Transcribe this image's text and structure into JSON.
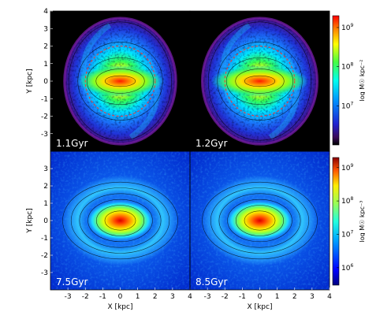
{
  "chart_data": [
    {
      "type": "heatmap",
      "panel": "top-left",
      "time_label": "1.1Gyr",
      "xlabel": "",
      "ylabel": "Y [kpc]",
      "xlim": [
        -4,
        4
      ],
      "ylim": [
        -4,
        4
      ],
      "x_ticks": [],
      "y_ticks": [
        -3,
        -2,
        -1,
        0,
        1,
        2,
        3,
        4
      ],
      "background": "black",
      "disk": {
        "radius_x": 3.2,
        "radius_y": 3.6,
        "tilt_deg": 0
      },
      "bar": {
        "half_length": 1.8,
        "half_width": 0.35
      },
      "dashed_circle_radius": 2.0,
      "contour_levels": 5
    },
    {
      "type": "heatmap",
      "panel": "top-right",
      "time_label": "1.2Gyr",
      "xlabel": "",
      "ylabel": "",
      "xlim": [
        -4,
        4
      ],
      "ylim": [
        -4,
        4
      ],
      "x_ticks": [],
      "y_ticks": [],
      "background": "black",
      "disk": {
        "radius_x": 3.3,
        "radius_y": 3.6,
        "tilt_deg": 0
      },
      "bar": {
        "half_length": 2.0,
        "half_width": 0.35
      },
      "dashed_circle_radius": 2.0,
      "contour_levels": 5
    },
    {
      "type": "heatmap",
      "panel": "bottom-left",
      "time_label": "7.5Gyr",
      "xlabel": "X [kpc]",
      "ylabel": "Y [kpc]",
      "xlim": [
        -4,
        4
      ],
      "ylim": [
        -4,
        4
      ],
      "x_ticks": [
        -3,
        -2,
        -1,
        0,
        1,
        2,
        3,
        4
      ],
      "y_ticks": [
        -3,
        -2,
        -1,
        0,
        1,
        2,
        3
      ],
      "background": "blue",
      "bar": {
        "half_length": 1.4,
        "half_width": 0.45
      },
      "contour_levels": 6
    },
    {
      "type": "heatmap",
      "panel": "bottom-right",
      "time_label": "8.5Gyr",
      "xlabel": "X [kpc]",
      "ylabel": "",
      "xlim": [
        -4,
        4
      ],
      "ylim": [
        -4,
        4
      ],
      "x_ticks": [
        -3,
        -2,
        -1,
        0,
        1,
        2,
        3,
        4
      ],
      "y_ticks": [],
      "background": "blue",
      "bar": {
        "half_length": 1.4,
        "half_width": 0.45
      },
      "contour_levels": 6
    }
  ],
  "colorbars": [
    {
      "position": "top",
      "title": "log M☉ kpc⁻²",
      "scale": "log",
      "range": [
        1000000,
        2000000000
      ],
      "ticks": [
        {
          "value": 10000000,
          "base": "10",
          "exp": "7"
        },
        {
          "value": 100000000,
          "base": "10",
          "exp": "8"
        },
        {
          "value": 1000000000,
          "base": "10",
          "exp": "9"
        }
      ],
      "colormap": "jet-dark"
    },
    {
      "position": "bottom",
      "title": "log M☉ kpc⁻³",
      "scale": "log",
      "range": [
        300000,
        2000000000
      ],
      "ticks": [
        {
          "value": 1000000,
          "base": "10",
          "exp": "6"
        },
        {
          "value": 10000000,
          "base": "10",
          "exp": "7"
        },
        {
          "value": 100000000,
          "base": "10",
          "exp": "8"
        },
        {
          "value": 1000000000,
          "base": "10",
          "exp": "9"
        }
      ],
      "colormap": "jet"
    }
  ]
}
